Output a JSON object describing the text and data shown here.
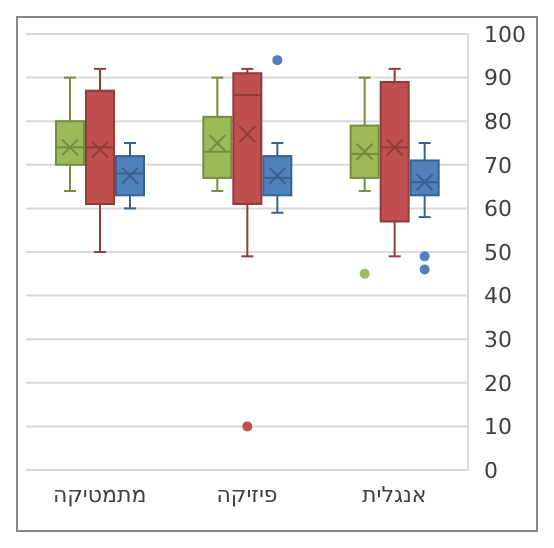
{
  "chart_data": {
    "type": "box",
    "categories": [
      "מתמטיקה",
      "פיזיקה",
      "אנגלית"
    ],
    "series": [
      {
        "color": "#9bbb59",
        "boxes": [
          {
            "low": 64,
            "q1": 70,
            "median": 74,
            "q3": 80,
            "high": 90,
            "mean": 74
          },
          {
            "low": 64,
            "q1": 67,
            "median": 73,
            "q3": 81,
            "high": 90,
            "mean": 75
          },
          {
            "low": 64,
            "q1": 67,
            "median": 72.5,
            "q3": 79,
            "high": 90,
            "mean": 73,
            "outliers": [
              45
            ]
          }
        ]
      },
      {
        "color": "#c0504d",
        "boxes": [
          {
            "low": 50,
            "q1": 61,
            "median": 74,
            "q3": 87,
            "high": 92,
            "mean": 73.5
          },
          {
            "low": 49,
            "q1": 61,
            "median": 86,
            "q3": 91,
            "high": 92,
            "mean": 77,
            "outliers": [
              10
            ]
          },
          {
            "low": 49,
            "q1": 57,
            "median": 74,
            "q3": 89,
            "high": 92,
            "mean": 74
          }
        ]
      },
      {
        "color": "#4f81bd",
        "boxes": [
          {
            "low": 60,
            "q1": 63,
            "median": 68,
            "q3": 72,
            "high": 75,
            "mean": 67.5
          },
          {
            "low": 59,
            "q1": 63,
            "median": 67,
            "q3": 72,
            "high": 75,
            "mean": 67.5,
            "outliers": [
              94
            ]
          },
          {
            "low": 58,
            "q1": 63,
            "median": 66,
            "q3": 71,
            "high": 75,
            "mean": 66,
            "outliers": [
              49,
              46
            ]
          }
        ]
      }
    ],
    "ylim": [
      0,
      100
    ],
    "yticks": [
      0,
      10,
      20,
      30,
      40,
      50,
      60,
      70,
      80,
      90,
      100
    ],
    "grid": "y"
  }
}
